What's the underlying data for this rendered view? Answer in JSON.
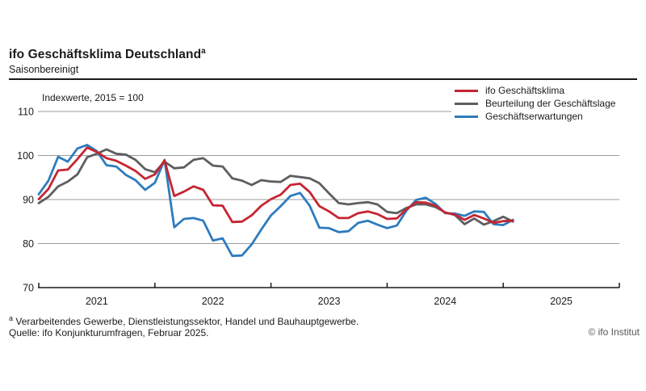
{
  "header": {
    "title": "ifo Geschäftsklima Deutschland",
    "title_superscript": "a",
    "subtitle": "Saisonbereinigt"
  },
  "chart_data": {
    "type": "line",
    "unit_label": "Indexwerte, 2015 = 100",
    "x_start": "2021-01",
    "x_end": "2025-02",
    "x_axis_years": [
      "2021",
      "2022",
      "2023",
      "2024",
      "2025"
    ],
    "y_ticks": [
      110,
      100,
      90,
      80,
      70
    ],
    "ylim": [
      70,
      110
    ],
    "grid": "horizontal",
    "legend_position": "top-right",
    "series": [
      {
        "name": "ifo Geschäftsklima",
        "color": "#c52532",
        "values": [
          90.1,
          92.4,
          96.6,
          96.8,
          99.2,
          101.8,
          100.8,
          99.4,
          98.8,
          97.7,
          96.5,
          94.7,
          95.7,
          98.9,
          90.8,
          91.8,
          93.0,
          92.2,
          88.7,
          88.6,
          84.9,
          85.0,
          86.4,
          88.6,
          90.1,
          91.1,
          93.3,
          93.6,
          91.7,
          88.5,
          87.3,
          85.8,
          85.8,
          86.9,
          87.3,
          86.7,
          85.6,
          85.7,
          87.8,
          89.4,
          89.3,
          88.6,
          87.0,
          86.6,
          85.4,
          86.5,
          85.7,
          84.7,
          85.1,
          85.2
        ]
      },
      {
        "name": "Beurteilung der Geschäftslage",
        "color": "#5d5e60",
        "values": [
          89.2,
          90.6,
          93.0,
          94.1,
          95.7,
          99.6,
          100.4,
          101.4,
          100.4,
          100.2,
          99.0,
          96.9,
          96.2,
          98.6,
          97.1,
          97.3,
          99.0,
          99.4,
          97.7,
          97.5,
          94.8,
          94.3,
          93.3,
          94.4,
          94.1,
          94.0,
          95.4,
          95.1,
          94.8,
          93.7,
          91.4,
          89.2,
          88.9,
          89.2,
          89.4,
          88.9,
          87.2,
          86.9,
          88.1,
          88.9,
          88.9,
          88.3,
          87.1,
          86.5,
          84.4,
          85.7,
          84.3,
          85.1,
          86.1,
          85.0
        ]
      },
      {
        "name": "Geschäftserwartungen",
        "color": "#2e7cbe",
        "values": [
          91.2,
          94.3,
          99.7,
          98.6,
          101.6,
          102.4,
          101.0,
          97.8,
          97.5,
          95.6,
          94.4,
          92.2,
          93.8,
          99.0,
          83.7,
          85.6,
          85.8,
          85.2,
          80.7,
          81.2,
          77.2,
          77.3,
          79.8,
          83.2,
          86.4,
          88.5,
          90.8,
          91.5,
          88.6,
          83.6,
          83.5,
          82.6,
          82.8,
          84.7,
          85.2,
          84.3,
          83.5,
          84.1,
          87.5,
          89.9,
          90.4,
          89.0,
          86.9,
          86.8,
          86.3,
          87.3,
          87.2,
          84.4,
          84.2,
          85.4
        ]
      }
    ]
  },
  "footer": {
    "footnote_marker": "a",
    "footnote": "Verarbeitendes Gewerbe, Dienstleistungssektor, Handel und Bauhauptgewerbe.",
    "source": "Quelle: ifo Konjunkturumfragen, Februar 2025.",
    "copyright": "© ifo Institut"
  }
}
